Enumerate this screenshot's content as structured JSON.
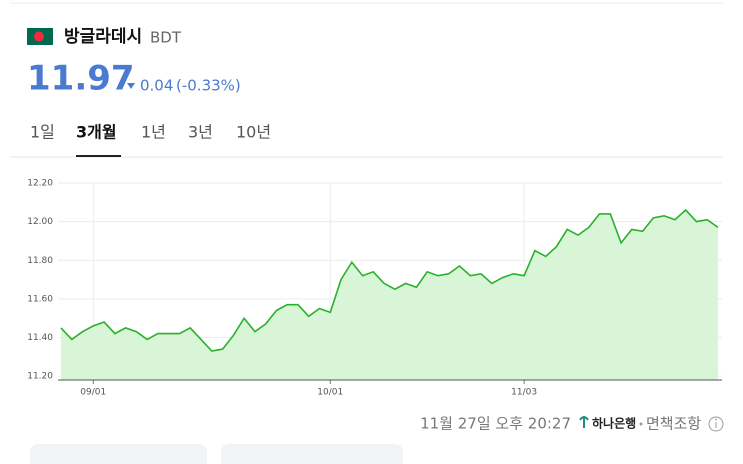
{
  "header": {
    "title": "방글라데시",
    "code": "BDT",
    "price": 11.97,
    "change": 0.04,
    "change_pct": "(-0.33%)"
  },
  "tabs": [
    "1일",
    "3개월",
    "1년",
    "3년",
    "10년"
  ],
  "chart_data": {
    "type": "area",
    "categories": [
      null,
      null,
      null,
      "09/01",
      null,
      null,
      null,
      null,
      null,
      null,
      null,
      null,
      null,
      null,
      null,
      null,
      null,
      null,
      null,
      null,
      null,
      null,
      null,
      null,
      null,
      "10/01",
      null,
      null,
      null,
      null,
      null,
      null,
      null,
      null,
      null,
      null,
      null,
      null,
      null,
      null,
      null,
      null,
      null,
      "11/03",
      null,
      null,
      null,
      null,
      null,
      null,
      null,
      null,
      null,
      null,
      null,
      null,
      null,
      null,
      null,
      null,
      null,
      null
    ],
    "series": [
      {
        "color": "#2bb02b",
        "values": [
          11.45,
          11.39,
          11.43,
          11.46,
          11.48,
          11.42,
          11.45,
          11.43,
          11.39,
          11.42,
          11.42,
          11.42,
          11.45,
          11.39,
          11.33,
          11.34,
          11.41,
          11.5,
          11.43,
          11.47,
          11.54,
          11.57,
          11.57,
          11.51,
          11.55,
          11.53,
          11.7,
          11.79,
          11.72,
          11.74,
          11.68,
          11.65,
          11.68,
          11.66,
          11.74,
          11.72,
          11.73,
          11.77,
          11.72,
          11.73,
          11.68,
          11.71,
          11.73,
          11.72,
          11.85,
          11.82,
          11.87,
          11.96,
          11.93,
          11.97,
          12.04,
          12.04,
          11.89,
          11.96,
          11.95,
          12.02,
          12.03,
          12.01,
          12.06,
          12.0,
          12.01,
          11.97
        ]
      }
    ],
    "ylim": [
      11.18,
      12.2
    ],
    "yticks": [
      {
        "value": 11.2,
        "label": "11.20"
      },
      {
        "value": 11.4,
        "label": "11.40"
      },
      {
        "value": 11.6,
        "label": "11.60"
      },
      {
        "value": 11.8,
        "label": "11.80"
      },
      {
        "value": 12.0,
        "label": "12.00"
      },
      {
        "value": 12.2,
        "label": "12.20"
      }
    ],
    "grid": true
  },
  "footer": {
    "timestamp": "11월 27일 오후 20:27",
    "source": "하나은행",
    "disclaimer": "면책조항"
  }
}
